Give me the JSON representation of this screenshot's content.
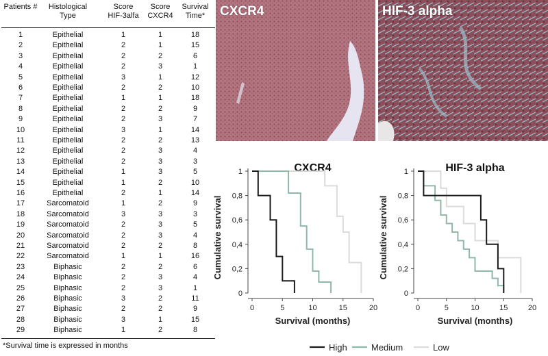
{
  "table": {
    "headers": {
      "patients": "Patients #",
      "histological": [
        "Histological",
        "Type"
      ],
      "score_hif": [
        "Score",
        "HIF-3alfa"
      ],
      "score_cxcr4": [
        "Score",
        "CXCR4"
      ],
      "survival": [
        "Survival",
        "Time*"
      ]
    },
    "rows": [
      [
        "1",
        "Epithelial",
        "1",
        "1",
        "18"
      ],
      [
        "2",
        "Epithelial",
        "2",
        "1",
        "15"
      ],
      [
        "3",
        "Epithelial",
        "2",
        "2",
        "6"
      ],
      [
        "4",
        "Epithelial",
        "2",
        "3",
        "1"
      ],
      [
        "5",
        "Epithelial",
        "3",
        "1",
        "12"
      ],
      [
        "6",
        "Epithelial",
        "2",
        "2",
        "10"
      ],
      [
        "7",
        "Epithelial",
        "1",
        "1",
        "18"
      ],
      [
        "8",
        "Epithelial",
        "2",
        "2",
        "9"
      ],
      [
        "9",
        "Epithelial",
        "2",
        "3",
        "7"
      ],
      [
        "10",
        "Epithelial",
        "3",
        "1",
        "14"
      ],
      [
        "11",
        "Epithelial",
        "2",
        "2",
        "13"
      ],
      [
        "12",
        "Epithelial",
        "2",
        "3",
        "4"
      ],
      [
        "13",
        "Epithelial",
        "2",
        "3",
        "3"
      ],
      [
        "14",
        "Epithelial",
        "1",
        "3",
        "5"
      ],
      [
        "15",
        "Epithelial",
        "1",
        "2",
        "10"
      ],
      [
        "16",
        "Epithelial",
        "2",
        "1",
        "14"
      ],
      [
        "17",
        "Sarcomatoid",
        "1",
        "2",
        "9"
      ],
      [
        "18",
        "Sarcomatoid",
        "3",
        "3",
        "3"
      ],
      [
        "19",
        "Sarcomatoid",
        "2",
        "3",
        "5"
      ],
      [
        "20",
        "Sarcomatoid",
        "2",
        "3",
        "4"
      ],
      [
        "21",
        "Sarcomatoid",
        "2",
        "2",
        "8"
      ],
      [
        "22",
        "Sarcomatoid",
        "1",
        "1",
        "16"
      ],
      [
        "23",
        "Biphasic",
        "2",
        "2",
        "6"
      ],
      [
        "24",
        "Biphasic",
        "2",
        "3",
        "4"
      ],
      [
        "25",
        "Biphasic",
        "2",
        "3",
        "1"
      ],
      [
        "26",
        "Biphasic",
        "3",
        "2",
        "11"
      ],
      [
        "27",
        "Biphasic",
        "2",
        "2",
        "9"
      ],
      [
        "28",
        "Biphasic",
        "3",
        "1",
        "15"
      ],
      [
        "29",
        "Biphasic",
        "1",
        "2",
        "8"
      ]
    ],
    "footnote": "*Survival time is expressed in months"
  },
  "images": [
    {
      "label": "CXCR4",
      "tissue_color": "#b0707a"
    },
    {
      "label": "HIF-3 alpha",
      "tissue_color": "#8a4a55",
      "stroma_color": "#8fb0bf"
    }
  ],
  "chart_data": [
    {
      "type": "line",
      "title": "CXCR4",
      "xlabel": "Survival (months)",
      "ylabel": "Cumulative survival",
      "xlim": [
        0,
        20
      ],
      "ylim": [
        0,
        1
      ],
      "xticks": [
        "0",
        "5",
        "10",
        "15",
        "20"
      ],
      "yticks": [
        "0",
        "0,2",
        "0,4",
        "0,6",
        "0,8",
        "1"
      ],
      "series": [
        {
          "name": "High",
          "color": "#1a1a1a",
          "x": [
            0,
            1,
            1,
            3,
            3,
            4,
            4,
            5,
            5,
            7,
            7
          ],
          "y": [
            1,
            1,
            0.8,
            0.8,
            0.6,
            0.6,
            0.3,
            0.3,
            0.1,
            0.1,
            0
          ]
        },
        {
          "name": "Medium",
          "color": "#8fb8a6",
          "x": [
            0,
            6,
            6,
            8,
            8,
            9,
            9,
            10,
            10,
            11,
            11,
            13,
            13
          ],
          "y": [
            1,
            1,
            0.82,
            0.82,
            0.55,
            0.55,
            0.36,
            0.36,
            0.18,
            0.18,
            0.09,
            0.09,
            0
          ]
        },
        {
          "name": "Low",
          "color": "#d9dcd8",
          "x": [
            0,
            12,
            12,
            14,
            14,
            15,
            15,
            16,
            16,
            18,
            18
          ],
          "y": [
            1,
            1,
            0.88,
            0.88,
            0.63,
            0.63,
            0.5,
            0.5,
            0.25,
            0.25,
            0
          ]
        }
      ]
    },
    {
      "type": "line",
      "title": "HIF-3 alpha",
      "xlabel": "Survival (months)",
      "ylabel": "Cumulative survival",
      "xlim": [
        0,
        20
      ],
      "ylim": [
        0,
        1
      ],
      "xticks": [
        "0",
        "5",
        "10",
        "15",
        "20"
      ],
      "yticks": [
        "0",
        "0,2",
        "0,4",
        "0,6",
        "0,8",
        "1"
      ],
      "series": [
        {
          "name": "High",
          "color": "#1a1a1a",
          "x": [
            0,
            1,
            1,
            3,
            3,
            11,
            11,
            12,
            12,
            14,
            14,
            15,
            15
          ],
          "y": [
            1,
            1,
            0.8,
            0.8,
            0.8,
            0.8,
            0.6,
            0.6,
            0.4,
            0.4,
            0.2,
            0.2,
            0
          ]
        },
        {
          "name": "Medium",
          "color": "#8fb8a6",
          "x": [
            0,
            1,
            1,
            3,
            3,
            4,
            4,
            5,
            5,
            6,
            6,
            7,
            7,
            8,
            8,
            9,
            9,
            10,
            10,
            13,
            13,
            14,
            14,
            15,
            15
          ],
          "y": [
            1,
            1,
            0.88,
            0.88,
            0.76,
            0.76,
            0.64,
            0.64,
            0.57,
            0.57,
            0.5,
            0.5,
            0.43,
            0.43,
            0.36,
            0.36,
            0.29,
            0.29,
            0.18,
            0.18,
            0.12,
            0.12,
            0.06,
            0.06,
            0
          ]
        },
        {
          "name": "Low",
          "color": "#d9dcd8",
          "x": [
            0,
            4,
            4,
            5,
            5,
            8,
            8,
            10,
            10,
            14,
            14,
            16,
            16,
            18,
            18
          ],
          "y": [
            1,
            1,
            0.86,
            0.86,
            0.71,
            0.71,
            0.57,
            0.57,
            0.43,
            0.43,
            0.29,
            0.29,
            0.29,
            0.29,
            0
          ]
        }
      ]
    }
  ],
  "legend": [
    {
      "name": "High",
      "color": "#1a1a1a"
    },
    {
      "name": "Medium",
      "color": "#8fb8a6"
    },
    {
      "name": "Low",
      "color": "#d9dcd8"
    }
  ]
}
